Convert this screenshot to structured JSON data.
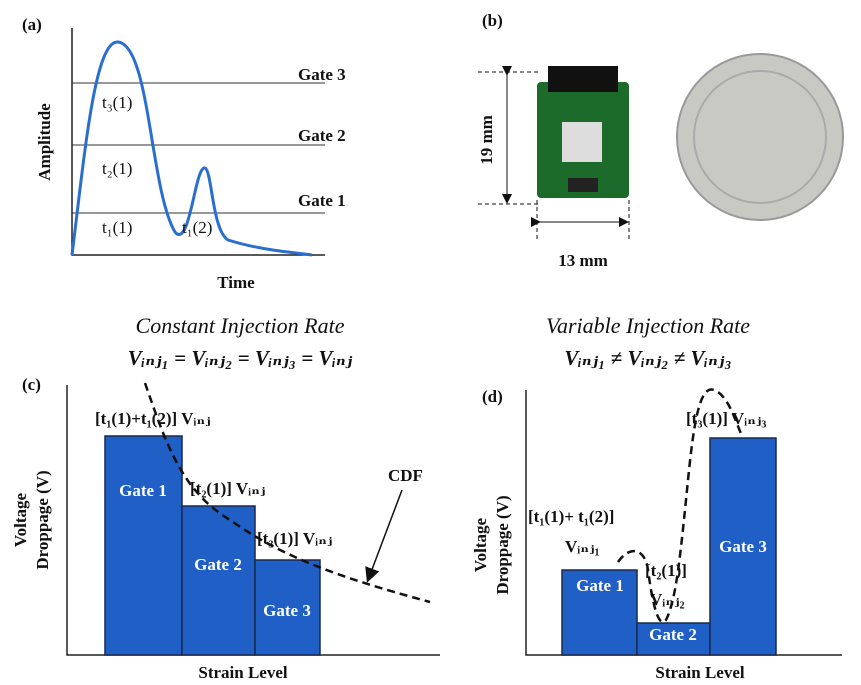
{
  "panel_a": {
    "label": "(a)",
    "gates": [
      "Gate 3",
      "Gate 2",
      "Gate 1"
    ],
    "y_axis": "Amplitude",
    "x_axis": "Time",
    "times": [
      "t₃(1)",
      "t₂(1)",
      "t₁(1)",
      "t₁(2)"
    ]
  },
  "panel_b": {
    "label": "(b)",
    "height": "19 mm",
    "width": "13 mm"
  },
  "panel_c": {
    "label": "(c)",
    "title": "Constant Injection Rate",
    "equation": "Vᵢₙⱼ₁ = Vᵢₙⱼ₂ = Vᵢₙⱼ₃ = Vᵢₙⱼ",
    "bars": [
      "Gate 1",
      "Gate 2",
      "Gate 3"
    ],
    "annotations": [
      "[t₁(1)+t₁(2)] Vᵢₙⱼ",
      "[t₂(1)] Vᵢₙⱼ",
      "[t₃(1)] Vᵢₙⱼ"
    ],
    "curve": "CDF",
    "y_axis": [
      "Voltage",
      "Droppage (V)"
    ],
    "x_axis": "Strain Level"
  },
  "panel_d": {
    "label": "(d)",
    "title": "Variable Injection Rate",
    "equation": "Vᵢₙⱼ₁ ≠ Vᵢₙⱼ₂ ≠ Vᵢₙⱼ₃",
    "bars": [
      "Gate 1",
      "Gate 2",
      "Gate 3"
    ],
    "annotations": [
      "[t₁(1)+ t₁(2)]",
      "Vᵢₙⱼ₁",
      "[t₂(1)]",
      "Vᵢₙⱼ₂",
      "[t₃(1)] Vᵢₙⱼ₃"
    ],
    "y_axis": [
      "Voltage",
      "Droppage (V)"
    ],
    "x_axis": "Strain Level"
  }
}
